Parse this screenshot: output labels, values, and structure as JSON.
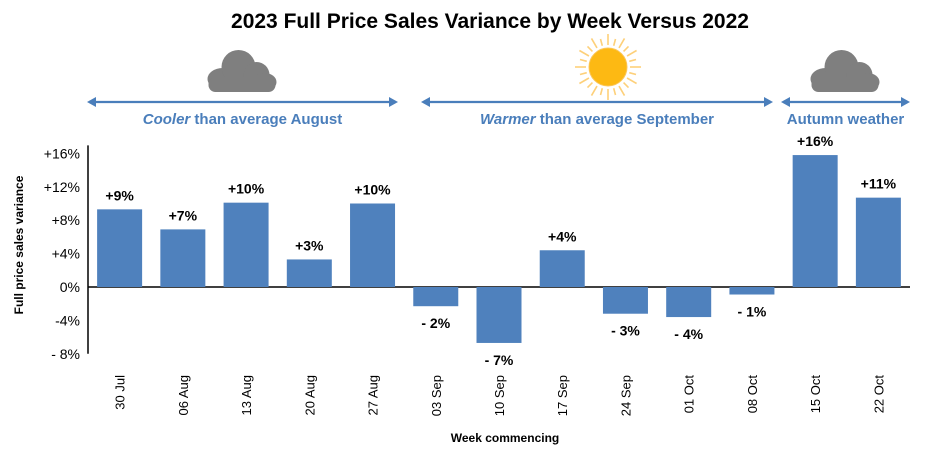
{
  "chart_data": {
    "type": "bar",
    "title": "2023 Full Price Sales Variance by Week Versus 2022",
    "xlabel": "Week commencing",
    "ylabel": "Full price sales variance",
    "categories": [
      "30 Jul",
      "06 Aug",
      "13 Aug",
      "20 Aug",
      "27 Aug",
      "03 Sep",
      "10 Sep",
      "17 Sep",
      "24 Sep",
      "01 Oct",
      "08 Oct",
      "15 Oct",
      "22 Oct"
    ],
    "values": [
      9.3,
      6.9,
      10.1,
      3.3,
      10.0,
      -2.3,
      -6.7,
      4.4,
      -3.2,
      -3.6,
      -0.9,
      15.8,
      10.7
    ],
    "data_labels": [
      "+9%",
      "+7%",
      "+10%",
      "+3%",
      "+10%",
      "- 2%",
      "- 7%",
      "+4%",
      "- 3%",
      "- 4%",
      "- 1%",
      "+16%",
      "+11%"
    ],
    "ylim": [
      -8,
      16
    ],
    "yticks": [
      -8,
      -4,
      0,
      4,
      8,
      12,
      16
    ],
    "ytick_labels": [
      "- 8%",
      "-4%",
      "0%",
      "+4%",
      "+8%",
      "+12%",
      "+16%"
    ],
    "grid": false,
    "bar_color": "#4f81bd",
    "annotation_color": "#4a7ebb",
    "periods": [
      {
        "emphasis": "Cooler",
        "rest": " than average August",
        "start": 0,
        "end": 4,
        "icon": "cloud-icon"
      },
      {
        "emphasis": "Warmer",
        "rest": " than average September",
        "start": 5,
        "end": 10,
        "icon": "sun-icon"
      },
      {
        "emphasis": "",
        "rest": "Autumn weather",
        "start": 11,
        "end": 12,
        "icon": "cloud-icon"
      }
    ]
  }
}
